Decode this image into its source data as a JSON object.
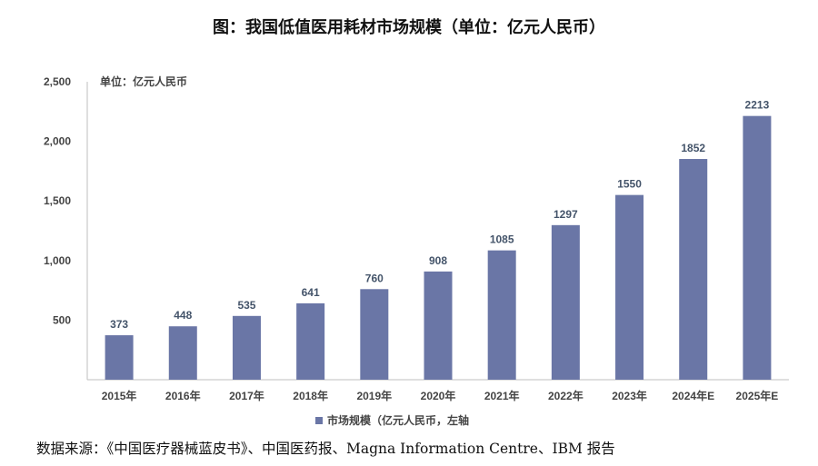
{
  "figure": {
    "title": "图：我国低值医用耗材市场规模（单位：亿元人民币）",
    "source": "数据来源：《中国医疗器械蓝皮书》、中国医药报、Magna Information Centre、IBM 报告"
  },
  "chart_data": {
    "type": "bar",
    "unit_label": "单位：亿元人民币",
    "categories": [
      "2015年",
      "2016年",
      "2017年",
      "2018年",
      "2019年",
      "2020年",
      "2021年",
      "2022年",
      "2023年",
      "2024年E",
      "2025年E"
    ],
    "series": [
      {
        "name": "市场规模（亿元人民币，左轴",
        "values": [
          373,
          448,
          535,
          641,
          760,
          908,
          1085,
          1297,
          1550,
          1852,
          2213
        ],
        "color": "#6a76a6"
      }
    ],
    "ylim": [
      0,
      2500
    ],
    "yticks": [
      500,
      1000,
      1500,
      2000,
      2500
    ],
    "ytick_labels": [
      "500",
      "1,000",
      "1,500",
      "2,000",
      "2,500"
    ],
    "grid": false,
    "legend_position": "bottom-center",
    "data_labels": true
  }
}
